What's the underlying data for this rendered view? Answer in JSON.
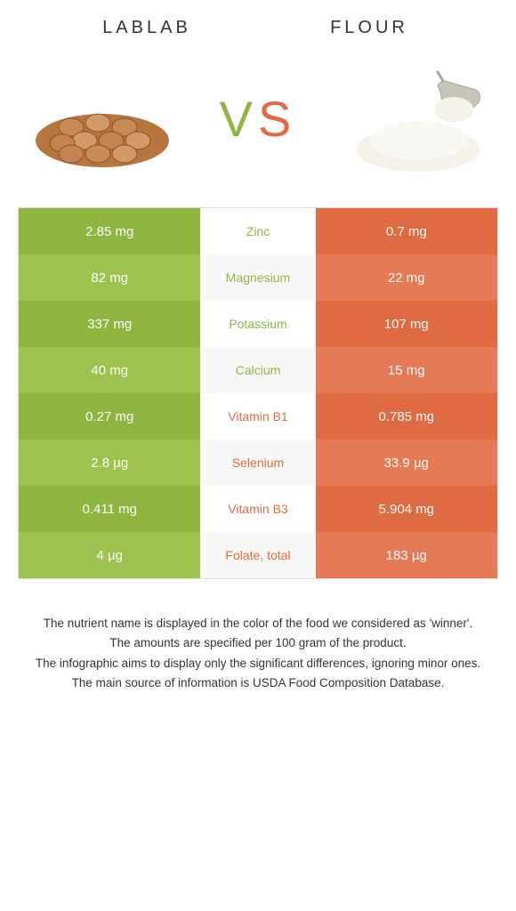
{
  "header": {
    "left_title": "LABLAB",
    "right_title": "FLOUR"
  },
  "vs": {
    "v": "V",
    "s": "S"
  },
  "colors": {
    "green_base": "#8fb541",
    "green_alt": "#9cc24f",
    "orange_base": "#e06a42",
    "orange_alt": "#e57a55",
    "white": "#ffffff",
    "off_white": "#f8f8f6"
  },
  "rows": [
    {
      "left": "2.85 mg",
      "label": "Zinc",
      "right": "0.7 mg",
      "winner": "left"
    },
    {
      "left": "82 mg",
      "label": "Magnesium",
      "right": "22 mg",
      "winner": "left"
    },
    {
      "left": "337 mg",
      "label": "Potassium",
      "right": "107 mg",
      "winner": "left"
    },
    {
      "left": "40 mg",
      "label": "Calcium",
      "right": "15 mg",
      "winner": "left"
    },
    {
      "left": "0.27 mg",
      "label": "Vitamin B1",
      "right": "0.785 mg",
      "winner": "right"
    },
    {
      "left": "2.8 µg",
      "label": "Selenium",
      "right": "33.9 µg",
      "winner": "right"
    },
    {
      "left": "0.411 mg",
      "label": "Vitamin B3",
      "right": "5.904 mg",
      "winner": "right"
    },
    {
      "left": "4 µg",
      "label": "Folate, total",
      "right": "183 µg",
      "winner": "right"
    }
  ],
  "footer": {
    "line1": "The nutrient name is displayed in the color of the food we considered as 'winner'.",
    "line2": "The amounts are specified per 100 gram of the product.",
    "line3": "The infographic aims to display only the significant differences, ignoring minor ones.",
    "line4": "The main source of information is USDA Food Composition Database."
  }
}
